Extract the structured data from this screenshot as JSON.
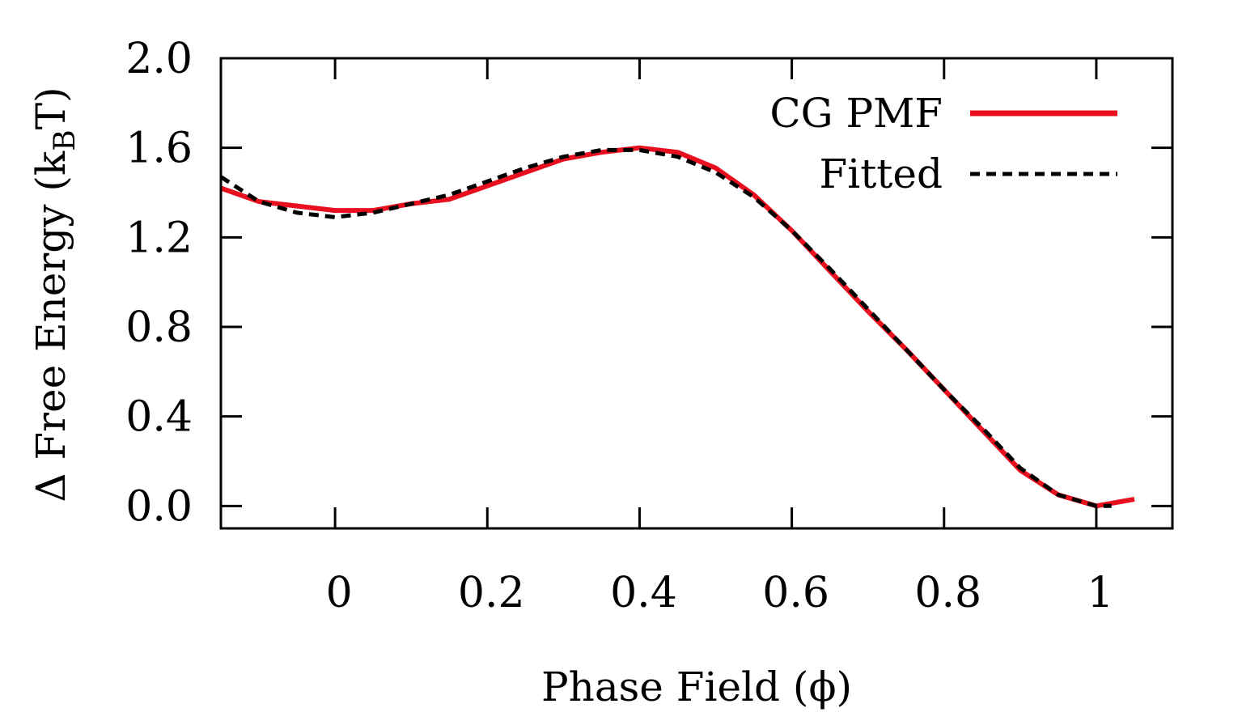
{
  "chart_data": {
    "type": "line",
    "title": "",
    "xlabel": "Phase Field (ϕ)",
    "ylabel": {
      "prefix": "Δ Free Energy (k",
      "subscript": "B",
      "suffix": "T)"
    },
    "xlim": [
      -0.15,
      1.1
    ],
    "ylim": [
      -0.1,
      2.0
    ],
    "xticks": [
      0,
      0.2,
      0.4,
      0.6,
      0.8,
      1
    ],
    "xtick_labels": [
      "0",
      "0.2",
      "0.4",
      "0.6",
      "0.8",
      "1"
    ],
    "yticks": [
      0.0,
      0.4,
      0.8,
      1.2,
      1.6,
      2.0
    ],
    "ytick_labels": [
      "0.0",
      "0.4",
      "0.8",
      "1.2",
      "1.6",
      "2.0"
    ],
    "grid": false,
    "legend_position": "top-right",
    "series": [
      {
        "name": "CG PMF",
        "color": "#e8101e",
        "style": "solid",
        "x": [
          -0.15,
          -0.1,
          -0.05,
          0.0,
          0.05,
          0.1,
          0.15,
          0.2,
          0.25,
          0.3,
          0.35,
          0.4,
          0.45,
          0.5,
          0.55,
          0.6,
          0.65,
          0.7,
          0.75,
          0.8,
          0.85,
          0.9,
          0.95,
          1.0,
          1.05
        ],
        "y": [
          1.42,
          1.36,
          1.34,
          1.32,
          1.32,
          1.35,
          1.37,
          1.43,
          1.49,
          1.55,
          1.58,
          1.6,
          1.58,
          1.51,
          1.39,
          1.23,
          1.05,
          0.87,
          0.7,
          0.52,
          0.34,
          0.16,
          0.05,
          0.0,
          0.03
        ]
      },
      {
        "name": "Fitted",
        "color": "#000000",
        "style": "dashed",
        "x": [
          -0.15,
          -0.1,
          -0.05,
          0.0,
          0.05,
          0.1,
          0.15,
          0.2,
          0.25,
          0.3,
          0.35,
          0.4,
          0.45,
          0.5,
          0.55,
          0.6,
          0.65,
          0.7,
          0.75,
          0.8,
          0.85,
          0.9,
          0.95,
          1.0,
          1.02
        ],
        "y": [
          1.47,
          1.36,
          1.31,
          1.29,
          1.31,
          1.35,
          1.39,
          1.45,
          1.51,
          1.56,
          1.59,
          1.59,
          1.56,
          1.49,
          1.38,
          1.23,
          1.06,
          0.88,
          0.7,
          0.52,
          0.35,
          0.17,
          0.05,
          0.0,
          0.0
        ]
      }
    ]
  }
}
